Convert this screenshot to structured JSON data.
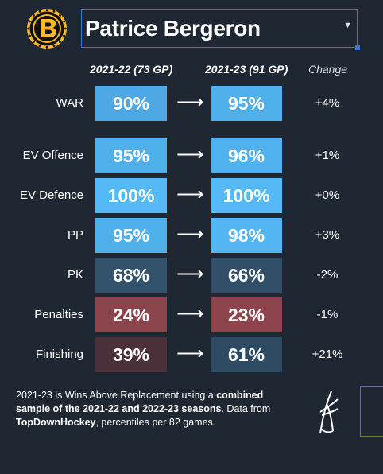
{
  "header": {
    "player_name": "Patrice Bergeron",
    "team_logo_icon": "bruins-logo-icon",
    "dropdown_icon": "caret-down-icon"
  },
  "columns": {
    "season1": "2021-22 (73 GP)",
    "season2": "2021-23 (91 GP)",
    "change": "Change"
  },
  "rows": [
    {
      "label": "WAR",
      "v1": "90%",
      "v2": "95%",
      "change": "+4%",
      "c1": "#4fa8e6",
      "c2": "#4fb0ec"
    },
    {
      "label": "EV Offence",
      "v1": "95%",
      "v2": "96%",
      "change": "+1%",
      "c1": "#4fb0ec",
      "c2": "#4fb2ee"
    },
    {
      "label": "EV Defence",
      "v1": "100%",
      "v2": "100%",
      "change": "+0%",
      "c1": "#55b9f5",
      "c2": "#55b9f5"
    },
    {
      "label": "PP",
      "v1": "95%",
      "v2": "98%",
      "change": "+3%",
      "c1": "#4fb0ec",
      "c2": "#53b6f2"
    },
    {
      "label": "PK",
      "v1": "68%",
      "v2": "66%",
      "change": "-2%",
      "c1": "#33536d",
      "c2": "#324f69"
    },
    {
      "label": "Penalties",
      "v1": "24%",
      "v2": "23%",
      "change": "-1%",
      "c1": "#8b434c",
      "c2": "#8d444c"
    },
    {
      "label": "Finishing",
      "v1": "39%",
      "v2": "61%",
      "change": "+21%",
      "c1": "#4a3039",
      "c2": "#2f4b63"
    }
  ],
  "arrow_glyph": "⟶",
  "footnote": {
    "part1": "2021-23 is Wins Above Replacement using a ",
    "bold1": "combined sample of the 2021-22 and 2022-23 seasons",
    "part2": ". Data from ",
    "bold2": "TopDownHockey",
    "part3": ", percentiles per 82 games."
  },
  "brand_mark_icon": "jfresh-signature-icon"
}
